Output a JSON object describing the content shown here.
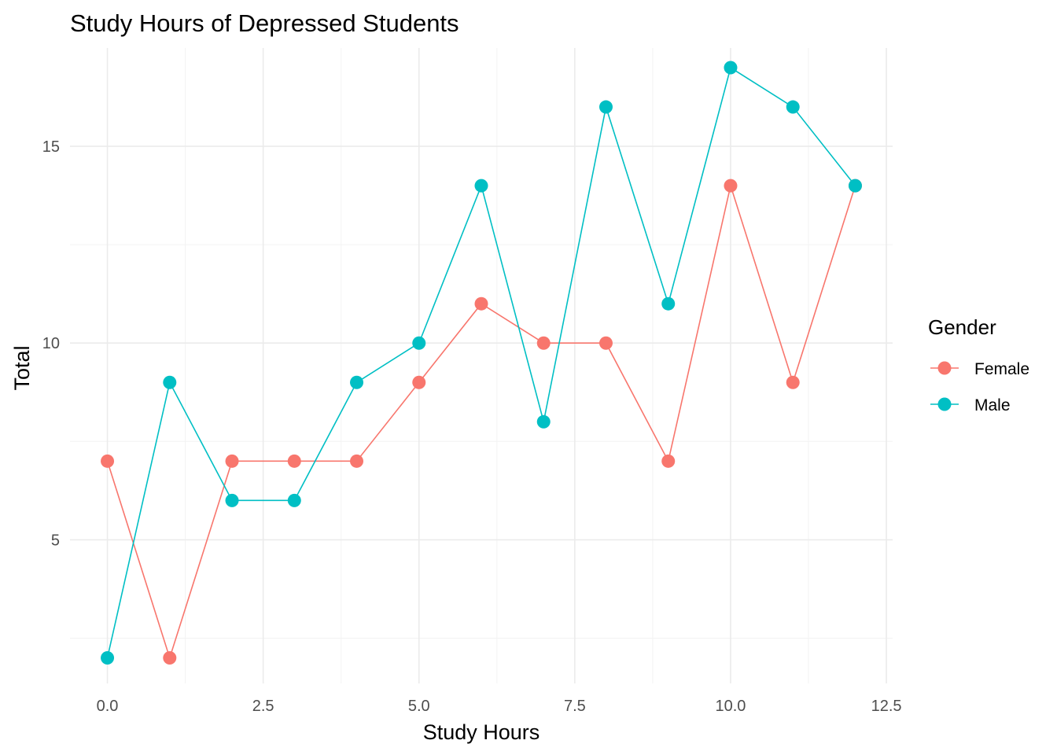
{
  "chart_data": {
    "type": "line",
    "title": "Study Hours of Depressed Students",
    "xlabel": "Study Hours",
    "ylabel": "Total",
    "xlim": [
      -0.6,
      12.6
    ],
    "ylim": [
      1.35,
      17.5
    ],
    "x_ticks": [
      0,
      2.5,
      5,
      7.5,
      10,
      12.5
    ],
    "x_tick_labels": [
      "0.0",
      "2.5",
      "5.0",
      "7.5",
      "10.0",
      "12.5"
    ],
    "y_ticks": [
      5,
      10,
      15
    ],
    "y_tick_labels": [
      "5",
      "10",
      "15"
    ],
    "grid": true,
    "legend": {
      "title": "Gender",
      "placement": "right"
    },
    "series": [
      {
        "name": "Female",
        "color": "#F8766D",
        "x": [
          0,
          1,
          2,
          3,
          4,
          5,
          6,
          7,
          8,
          9,
          10,
          11,
          12
        ],
        "y": [
          7,
          2,
          7,
          7,
          7,
          9,
          11,
          10,
          10,
          7,
          14,
          9,
          14
        ]
      },
      {
        "name": "Male",
        "color": "#00BFC4",
        "x": [
          0,
          1,
          2,
          3,
          4,
          5,
          6,
          7,
          8,
          9,
          10,
          11,
          12
        ],
        "y": [
          2,
          9,
          6,
          6,
          9,
          10,
          14,
          8,
          16,
          11,
          17,
          16,
          14
        ]
      }
    ]
  }
}
